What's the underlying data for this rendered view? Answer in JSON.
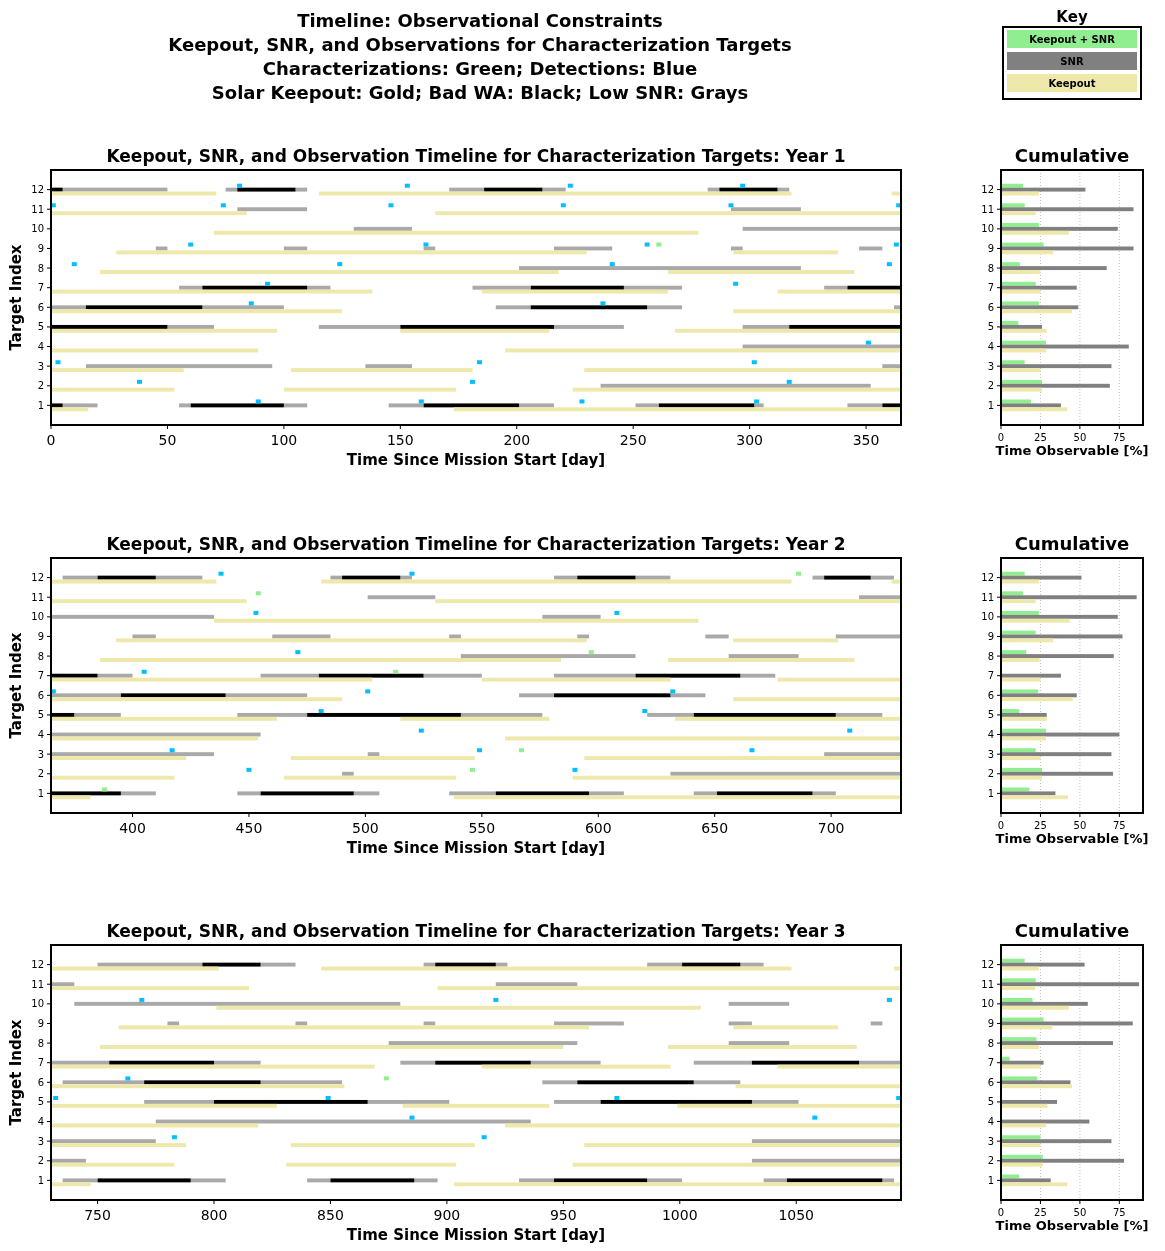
{
  "chart_data": [
    {
      "type": "other",
      "title": "Timeline: Observational Constraints\nKeepout, SNR, and Observations for Characterization Targets\nCharacterizations: Green; Detections: Blue\nSolar Keepout: Gold; Bad WA: Black; Low SNR: Grays"
    },
    {
      "type": "bar",
      "orientation": "horizontal",
      "title": "Keepout, SNR, and Observation Timeline for Characterization Targets: Year 1",
      "xlabel": "Time Since Mission Start [day]",
      "ylabel": "Target Index",
      "categories": [
        "12",
        "11",
        "10",
        "9",
        "8",
        "7",
        "6",
        "5",
        "4",
        "3",
        "2",
        "1"
      ],
      "xlim": [
        0,
        365
      ],
      "xticks": [
        0,
        50,
        100,
        150,
        200,
        250,
        300,
        350
      ],
      "marker": "square",
      "series": [
        {
          "type": "bar",
          "color": "#a9a9a9",
          "x": [
            "12",
            "12",
            "12",
            "12",
            "12",
            "12",
            "12",
            "11",
            "11",
            "10",
            "10",
            "9",
            "9",
            "9",
            "9",
            "9",
            "9",
            "8",
            "7",
            "7",
            "7",
            "7",
            "7",
            "6",
            "6",
            "6",
            "6",
            "6",
            "5",
            "5",
            "5",
            "5",
            "4",
            "3",
            "3",
            "3",
            "2",
            "1",
            "1",
            "1",
            "1",
            "1",
            "1",
            "1",
            "1"
          ],
          "base": [
            5,
            75,
            105,
            171,
            211,
            282,
            312,
            80,
            292,
            130,
            297,
            45,
            100,
            160,
            216,
            292,
            347,
            201,
            55,
            110,
            181,
            246,
            332,
            0,
            65,
            191,
            256,
            362,
            50,
            115,
            216,
            297,
            297,
            15,
            135,
            357,
            236,
            5,
            55,
            100,
            145,
            201,
            251,
            302,
            342
          ],
          "values": [
            45,
            5,
            5,
            15,
            10,
            5,
            5,
            30,
            30,
            25,
            68,
            5,
            10,
            5,
            25,
            5,
            10,
            121,
            10,
            10,
            25,
            25,
            10,
            15,
            35,
            15,
            15,
            3,
            20,
            35,
            30,
            20,
            68,
            80,
            20,
            8,
            116,
            15,
            5,
            10,
            15,
            15,
            10,
            4,
            15
          ]
        },
        {
          "type": "bar",
          "color": "#000000",
          "x": [
            "12",
            "12",
            "12",
            "12",
            "7",
            "7",
            "7",
            "6",
            "6",
            "5",
            "5",
            "5",
            "1",
            "1",
            "1",
            "1",
            "1"
          ],
          "base": [
            0,
            80,
            186,
            287,
            65,
            206,
            342,
            15,
            206,
            0,
            150,
            317,
            0,
            60,
            160,
            261,
            357
          ],
          "values": [
            5,
            25,
            25,
            25,
            45,
            40,
            23,
            50,
            50,
            50,
            66,
            48,
            5,
            40,
            41,
            41,
            8
          ]
        },
        {
          "type": "bar",
          "color": "#eee8aa",
          "x": [
            "12",
            "12",
            "12",
            "11",
            "11",
            "10",
            "9",
            "9",
            "8",
            "8",
            "7",
            "7",
            "7",
            "6",
            "6",
            "5",
            "5",
            "5",
            "4",
            "4",
            "3",
            "3",
            "3",
            "2",
            "2",
            "2",
            "1",
            "1"
          ],
          "base": [
            0,
            115,
            361,
            0,
            165,
            70,
            28,
            293,
            21,
            265,
            0,
            185,
            312,
            0,
            293,
            0,
            150,
            268,
            0,
            195,
            0,
            103,
            229,
            0,
            100,
            224,
            0,
            173
          ],
          "values": [
            71,
            203,
            4,
            84,
            200,
            208,
            202,
            45,
            197,
            80,
            138,
            80,
            53,
            125,
            72,
            97,
            64,
            97,
            89,
            170,
            57,
            78,
            136,
            53,
            74,
            141,
            16,
            192
          ]
        },
        {
          "type": "scatter",
          "color": "#00bfff",
          "x": [
            "12",
            "12",
            "12",
            "12",
            "11",
            "11",
            "11",
            "11",
            "11",
            "11",
            "9",
            "9",
            "9",
            "9",
            "8",
            "8",
            "8",
            "8",
            "7",
            "7",
            "6",
            "6",
            "4",
            "3",
            "3",
            "3",
            "2",
            "2",
            "2",
            "1",
            "1",
            "1",
            "1"
          ],
          "values": [
            81,
            153,
            223,
            297,
            1,
            74,
            146,
            220,
            292,
            364,
            60,
            161,
            256,
            363,
            10,
            124,
            241,
            360,
            93,
            294,
            86,
            237,
            351,
            3,
            184,
            302,
            38,
            181,
            317,
            89,
            159,
            228,
            303
          ]
        },
        {
          "type": "scatter",
          "color": "#90ee90",
          "x": [
            "9"
          ],
          "values": [
            261
          ]
        }
      ]
    },
    {
      "type": "bar",
      "orientation": "horizontal",
      "title": "Cumulative",
      "xlabel": "Time Observable [%]",
      "categories": [
        "12",
        "11",
        "10",
        "9",
        "8",
        "7",
        "6",
        "5",
        "4",
        "3",
        "2",
        "1"
      ],
      "xlim": [
        0,
        90
      ],
      "xticks": [
        0,
        25,
        50,
        75
      ],
      "grid": "x",
      "legend": "top",
      "legend_title": "Key",
      "series": [
        {
          "name": "Keepout + SNR",
          "color": "#90ee90",
          "values": [
            14,
            15,
            24,
            27,
            12,
            22,
            24,
            11,
            28.5,
            15,
            26,
            19
          ]
        },
        {
          "name": "SNR",
          "color": "#808080",
          "values": [
            53.5,
            84,
            74,
            84,
            67,
            48,
            49,
            26,
            81,
            70,
            69,
            38
          ]
        },
        {
          "name": "Keepout",
          "color": "#eee8aa",
          "values": [
            24,
            22,
            43,
            33,
            25,
            25,
            45,
            29,
            28.5,
            25,
            26,
            42
          ]
        }
      ]
    },
    {
      "type": "bar",
      "orientation": "horizontal",
      "title": "Keepout, SNR, and Observation Timeline for Characterization Targets: Year 2",
      "xlabel": "Time Since Mission Start [day]",
      "ylabel": "Target Index",
      "categories": [
        "12",
        "11",
        "10",
        "9",
        "8",
        "7",
        "6",
        "5",
        "4",
        "3",
        "2",
        "1"
      ],
      "xlim": [
        365,
        730
      ],
      "xticks": [
        400,
        450,
        500,
        550,
        600,
        650,
        700
      ],
      "marker": "square",
      "series": [
        {
          "type": "bar",
          "color": "#a9a9a9",
          "x": [
            "12",
            "12",
            "12",
            "12",
            "12",
            "12",
            "12",
            "12",
            "11",
            "11",
            "10",
            "10",
            "9",
            "9",
            "9",
            "9",
            "9",
            "9",
            "8",
            "8",
            "7",
            "7",
            "7",
            "7",
            "7",
            "6",
            "6",
            "6",
            "6",
            "5",
            "5",
            "5",
            "5",
            "5",
            "4",
            "3",
            "3",
            "3",
            "2",
            "2",
            "1",
            "1",
            "1",
            "1",
            "1",
            "1",
            "1"
          ],
          "base": [
            370,
            410,
            485,
            515,
            581,
            616,
            692,
            717,
            501,
            712,
            365,
            576,
            400,
            460,
            536,
            591,
            646,
            702,
            541,
            656,
            385,
            455,
            525,
            581,
            661,
            365,
            440,
            566,
            631,
            375,
            445,
            541,
            621,
            702,
            365,
            365,
            501,
            697,
            490,
            631,
            395,
            445,
            495,
            536,
            596,
            641,
            692
          ],
          "values": [
            15,
            20,
            5,
            5,
            10,
            15,
            5,
            10,
            29,
            18,
            70,
            25,
            10,
            25,
            5,
            5,
            10,
            28,
            75,
            30,
            15,
            25,
            25,
            35,
            15,
            30,
            35,
            15,
            15,
            20,
            30,
            35,
            20,
            20,
            90,
            70,
            5,
            33,
            5,
            99,
            15,
            10,
            11,
            20,
            15,
            10,
            10
          ]
        },
        {
          "type": "bar",
          "color": "#000000",
          "x": [
            "12",
            "12",
            "12",
            "12",
            "7",
            "7",
            "7",
            "6",
            "6",
            "5",
            "5",
            "5",
            "1",
            "1",
            "1",
            "1"
          ],
          "base": [
            385,
            490,
            591,
            697,
            365,
            480,
            616,
            395,
            581,
            365,
            475,
            641,
            365,
            455,
            556,
            651
          ],
          "values": [
            25,
            25,
            25,
            20,
            20,
            45,
            45,
            45,
            50,
            10,
            66,
            61,
            30,
            40,
            40,
            41
          ]
        },
        {
          "type": "bar",
          "color": "#eee8aa",
          "x": [
            "12",
            "12",
            "12",
            "11",
            "11",
            "10",
            "9",
            "9",
            "8",
            "8",
            "7",
            "7",
            "7",
            "6",
            "6",
            "5",
            "5",
            "5",
            "4",
            "4",
            "3",
            "3",
            "3",
            "2",
            "2",
            "2",
            "1",
            "1"
          ],
          "base": [
            365,
            481,
            726,
            365,
            530,
            435,
            393,
            658,
            386,
            630,
            365,
            550,
            677,
            365,
            658,
            365,
            515,
            633,
            365,
            560,
            365,
            468,
            594,
            365,
            465,
            589,
            365,
            538
          ],
          "values": [
            71,
            202,
            4,
            84,
            200,
            208,
            202,
            45,
            198,
            80,
            138,
            81,
            53,
            125,
            72,
            97,
            64,
            97,
            89,
            170,
            58,
            79,
            136,
            53,
            74,
            141,
            17,
            192
          ]
        },
        {
          "type": "scatter",
          "color": "#00bfff",
          "x": [
            "12",
            "12",
            "10",
            "10",
            "8",
            "7",
            "6",
            "6",
            "6",
            "5",
            "5",
            "4",
            "4",
            "3",
            "3",
            "3",
            "2",
            "2"
          ],
          "values": [
            438,
            520,
            453,
            608,
            471,
            405,
            366,
            501,
            632,
            481,
            620,
            524,
            708,
            417,
            549,
            666,
            450,
            590
          ]
        },
        {
          "type": "scatter",
          "color": "#90ee90",
          "x": [
            "12",
            "11",
            "8",
            "7",
            "3",
            "2",
            "1"
          ],
          "values": [
            686,
            454,
            597,
            513,
            567,
            546,
            388
          ]
        }
      ]
    },
    {
      "type": "bar",
      "orientation": "horizontal",
      "title": "Cumulative",
      "xlabel": "Time Observable [%]",
      "categories": [
        "12",
        "11",
        "10",
        "9",
        "8",
        "7",
        "6",
        "5",
        "4",
        "3",
        "2",
        "1"
      ],
      "xlim": [
        0,
        90
      ],
      "xticks": [
        0,
        25,
        50,
        75
      ],
      "grid": "x",
      "series": [
        {
          "color": "#90ee90",
          "values": [
            15,
            14,
            24,
            22,
            16,
            0,
            23.5,
            11.5,
            28.5,
            22,
            26,
            18
          ]
        },
        {
          "color": "#808080",
          "values": [
            51,
            86,
            74,
            77,
            71.5,
            38,
            48,
            29,
            75,
            70,
            71,
            34.5
          ]
        },
        {
          "color": "#eee8aa",
          "values": [
            24,
            22,
            43.5,
            33,
            24.5,
            25,
            45.5,
            29,
            28.5,
            25,
            26,
            42.5
          ]
        }
      ]
    },
    {
      "type": "bar",
      "orientation": "horizontal",
      "title": "Keepout, SNR, and Observation Timeline for Characterization Targets: Year 3",
      "xlabel": "Time Since Mission Start [day]",
      "ylabel": "Target Index",
      "categories": [
        "12",
        "11",
        "10",
        "9",
        "8",
        "7",
        "6",
        "5",
        "4",
        "3",
        "2",
        "1"
      ],
      "xlim": [
        730,
        1095
      ],
      "xticks": [
        750,
        800,
        850,
        900,
        950,
        1000,
        1050
      ],
      "marker": "square",
      "series": [
        {
          "type": "bar",
          "color": "#a9a9a9",
          "x": [
            "12",
            "12",
            "12",
            "12",
            "12",
            "12",
            "11",
            "11",
            "10",
            "10",
            "9",
            "9",
            "9",
            "9",
            "9",
            "9",
            "8",
            "8",
            "7",
            "7",
            "7",
            "7",
            "7",
            "7",
            "6",
            "6",
            "6",
            "6",
            "5",
            "5",
            "5",
            "5",
            "4",
            "3",
            "3",
            "2",
            "2",
            "1",
            "1",
            "1",
            "1",
            "1",
            "1",
            "1",
            "1"
          ],
          "base": [
            750,
            820,
            890,
            921,
            986,
            1026,
            730,
            921,
            740,
            1021,
            780,
            835,
            890,
            946,
            1021,
            1082,
            875,
            1021,
            730,
            800,
            880,
            936,
            1006,
            1077,
            735,
            820,
            941,
            1006,
            770,
            866,
            946,
            1031,
            775,
            730,
            1031,
            730,
            1031,
            735,
            790,
            840,
            886,
            931,
            986,
            1036,
            1087
          ],
          "values": [
            45,
            15,
            5,
            5,
            15,
            10,
            10,
            35,
            140,
            26,
            5,
            5,
            5,
            30,
            10,
            5,
            81,
            26,
            25,
            20,
            15,
            30,
            25,
            18,
            35,
            35,
            15,
            20,
            30,
            35,
            20,
            20,
            161,
            45,
            64,
            15,
            64,
            15,
            15,
            10,
            10,
            15,
            15,
            10,
            5
          ]
        },
        {
          "type": "bar",
          "color": "#000000",
          "x": [
            "12",
            "12",
            "12",
            "7",
            "7",
            "7",
            "6",
            "6",
            "5",
            "5",
            "1",
            "1",
            "1",
            "1"
          ],
          "base": [
            795,
            895,
            1001,
            755,
            895,
            1031,
            770,
            956,
            800,
            966,
            750,
            850,
            946,
            1046
          ],
          "values": [
            25,
            26,
            25,
            45,
            41,
            46,
            50,
            50,
            66,
            65,
            40,
            36,
            40,
            41
          ]
        },
        {
          "type": "bar",
          "color": "#eee8aa",
          "x": [
            "12",
            "12",
            "12",
            "11",
            "11",
            "10",
            "9",
            "9",
            "8",
            "8",
            "7",
            "7",
            "7",
            "6",
            "6",
            "5",
            "5",
            "5",
            "4",
            "4",
            "3",
            "3",
            "3",
            "2",
            "2",
            "2",
            "1",
            "1"
          ],
          "base": [
            730,
            846,
            1092,
            730,
            896,
            801,
            759,
            1023,
            751,
            995,
            730,
            915,
            1042,
            730,
            1024,
            730,
            881,
            999,
            730,
            925,
            730,
            833,
            959,
            730,
            831,
            954,
            730,
            903
          ],
          "values": [
            72,
            202,
            3,
            85,
            199,
            208,
            202,
            45,
            199,
            81,
            139,
            81,
            53,
            126,
            71,
            97,
            63,
            96,
            89,
            170,
            58,
            79,
            136,
            53,
            73,
            141,
            17,
            192
          ]
        },
        {
          "type": "scatter",
          "color": "#00bfff",
          "x": [
            "10",
            "10",
            "10",
            "6",
            "5",
            "5",
            "5",
            "5",
            "4",
            "4",
            "3",
            "3"
          ],
          "values": [
            769,
            921,
            1090,
            763,
            732,
            849,
            973,
            1094,
            885,
            1058,
            783,
            916
          ]
        },
        {
          "type": "scatter",
          "color": "#90ee90",
          "x": [
            "6"
          ],
          "values": [
            874
          ]
        }
      ]
    },
    {
      "type": "bar",
      "orientation": "horizontal",
      "title": "Cumulative",
      "xlabel": "Time Observable [%]",
      "categories": [
        "12",
        "11",
        "10",
        "9",
        "8",
        "7",
        "6",
        "5",
        "4",
        "3",
        "2",
        "1"
      ],
      "xlim": [
        0,
        90
      ],
      "xticks": [
        0,
        25,
        50,
        75
      ],
      "grid": "x",
      "series": [
        {
          "color": "#90ee90",
          "values": [
            15,
            22,
            20,
            27,
            22.5,
            5.5,
            23,
            0,
            0,
            25,
            26.5,
            11.5
          ]
        },
        {
          "color": "#808080",
          "values": [
            53,
            87.5,
            55,
            83.5,
            71,
            27,
            44,
            35.5,
            56,
            70,
            78,
            31.5
          ]
        },
        {
          "color": "#eee8aa",
          "values": [
            24,
            21.5,
            43,
            32.5,
            24,
            25,
            45,
            29.5,
            28.5,
            25,
            26.5,
            42
          ]
        }
      ]
    }
  ]
}
